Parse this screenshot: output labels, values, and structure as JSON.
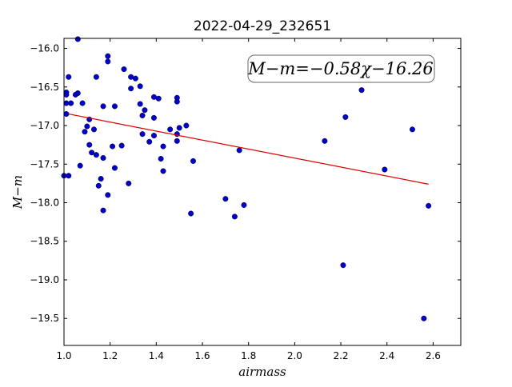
{
  "chart_data": {
    "type": "scatter",
    "title": "2022-04-29_232651",
    "xlabel": "airmass",
    "ylabel": "M−m",
    "annotation": "M−m=−0.58χ−16.26",
    "xlim": [
      1.0,
      2.72
    ],
    "ylim": [
      -19.85,
      -15.87
    ],
    "xticks": [
      {
        "value": 1.0,
        "label": "1.0"
      },
      1.2,
      1.4,
      1.6,
      1.8,
      {
        "value": 2.0,
        "label": "2.0"
      },
      2.2,
      2.4,
      2.6
    ],
    "yticks": [
      {
        "value": -16.0,
        "label": "−16.0"
      },
      {
        "value": -16.5,
        "label": "−16.5"
      },
      {
        "value": -17.0,
        "label": "−17.0"
      },
      {
        "value": -17.5,
        "label": "−17.5"
      },
      {
        "value": -18.0,
        "label": "−18.0"
      },
      {
        "value": -18.5,
        "label": "−18.5"
      },
      {
        "value": -19.0,
        "label": "−19.0"
      },
      {
        "value": -19.5,
        "label": "−19.5"
      }
    ],
    "series": [
      {
        "color": "#0000cc",
        "mode": "markers",
        "x": [
          1.06,
          1.19,
          1.19,
          1.02,
          1.14,
          1.26,
          1.29,
          1.31,
          1.33,
          1.29,
          1.06,
          1.05,
          1.01,
          1.01,
          1.01,
          1.03,
          1.08,
          1.17,
          1.22,
          1.33,
          1.39,
          1.41,
          1.49,
          1.49,
          1.35,
          1.34,
          1.39,
          1.01,
          1.11,
          1.1,
          1.13,
          1.09,
          1.46,
          1.5,
          1.53,
          1.34,
          1.39,
          1.49,
          1.37,
          1.49,
          1.43,
          1.25,
          1.21,
          1.11,
          1.12,
          1.14,
          1.17,
          1.42,
          1.56,
          1.76,
          2.13,
          2.22,
          2.29,
          2.51,
          2.39,
          1.07,
          1.22,
          1.43,
          1.0,
          1.02,
          1.16,
          1.28,
          1.15,
          1.19,
          1.7,
          1.78,
          2.58,
          1.17,
          1.55,
          1.74,
          2.21,
          2.56
        ],
        "values": [
          -15.88,
          -16.1,
          -16.17,
          -16.37,
          -16.37,
          -16.27,
          -16.37,
          -16.39,
          -16.49,
          -16.52,
          -16.58,
          -16.6,
          -16.57,
          -16.6,
          -16.71,
          -16.71,
          -16.71,
          -16.75,
          -16.75,
          -16.72,
          -16.63,
          -16.65,
          -16.64,
          -16.69,
          -16.8,
          -16.87,
          -16.9,
          -16.85,
          -16.92,
          -17.01,
          -17.05,
          -17.08,
          -17.05,
          -17.03,
          -17.0,
          -17.11,
          -17.13,
          -17.11,
          -17.21,
          -17.2,
          -17.27,
          -17.26,
          -17.27,
          -17.25,
          -17.35,
          -17.38,
          -17.42,
          -17.43,
          -17.46,
          -17.32,
          -17.2,
          -16.89,
          -16.54,
          -17.05,
          -17.57,
          -17.52,
          -17.55,
          -17.59,
          -17.65,
          -17.65,
          -17.69,
          -17.75,
          -17.78,
          -17.9,
          -17.95,
          -18.03,
          -18.04,
          -18.1,
          -18.14,
          -18.18,
          -18.81,
          -19.5
        ]
      },
      {
        "color": "#dd0000",
        "mode": "line",
        "x": [
          1.02,
          2.58
        ],
        "values": [
          -16.85,
          -17.76
        ]
      }
    ]
  }
}
